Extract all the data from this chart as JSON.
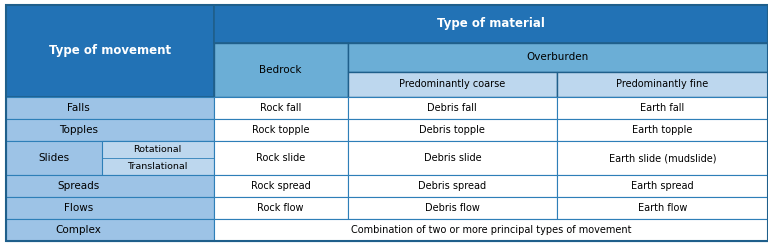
{
  "header_dark_blue": "#2272B5",
  "header_medium_blue": "#6BAED6",
  "header_light_blue": "#BDD7EE",
  "row_light_blue": "#9DC3E6",
  "row_white": "#FFFFFF",
  "left_col_blue": "#9DC3E6",
  "slide_sub_blue": "#BDD7EE",
  "col1_header": "Type of movement",
  "col2_header": "Type of material",
  "col2_sub1": "Bedrock",
  "col2_sub2": "Overburden",
  "col2_sub2a": "Predominantly coarse",
  "col2_sub2b": "Predominantly fine",
  "rows": [
    {
      "movement": "Falls",
      "sub": "",
      "bedrock": "Rock fall",
      "coarse": "Debris fall",
      "fine": "Earth fall"
    },
    {
      "movement": "Topples",
      "sub": "",
      "bedrock": "Rock topple",
      "coarse": "Debris topple",
      "fine": "Earth topple"
    },
    {
      "movement": "Slides",
      "sub": "Rotational\nTranslational",
      "bedrock": "Rock slide",
      "coarse": "Debris slide",
      "fine": "Earth slide (mudslide)"
    },
    {
      "movement": "Spreads",
      "sub": "",
      "bedrock": "Rock spread",
      "coarse": "Debris spread",
      "fine": "Earth spread"
    },
    {
      "movement": "Flows",
      "sub": "",
      "bedrock": "Rock flow",
      "coarse": "Debris flow",
      "fine": "Earth flow"
    },
    {
      "movement": "Complex",
      "sub": "",
      "bedrock": "Combination of two or more principal types of movement",
      "coarse": "",
      "fine": ""
    }
  ],
  "figsize": [
    7.68,
    2.46
  ],
  "dpi": 100
}
